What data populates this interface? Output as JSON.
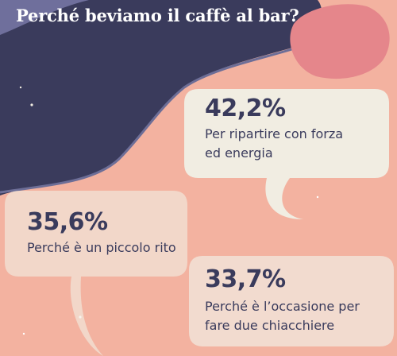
{
  "title": "Perché beviamo il caffè al bar?",
  "colors": {
    "background": "#f3b2a0",
    "navy": "#3a3b5c",
    "blob": "#e5868b",
    "bubble": "#f1ede2",
    "text": "#3a3b5c",
    "title": "#ffffff"
  },
  "chart_data": {
    "type": "table",
    "title": "Perché beviamo il caffè al bar?",
    "unit": "%",
    "categories": [
      "Per ripartire con forza ed energia",
      "Perché è un piccolo rito",
      "Perché è l'occasione per fare due chiacchiere"
    ],
    "values": [
      42.2,
      35.6,
      33.7
    ]
  },
  "items": [
    {
      "value": "42,2%",
      "line1": "Per ripartire con forza",
      "line2": "ed energia"
    },
    {
      "value": "35,6%",
      "line1": "Perché è un piccolo rito",
      "line2": ""
    },
    {
      "value": "33,7%",
      "line1": "Perché è l’occasione per",
      "line2": "fare due chiacchiere"
    }
  ]
}
